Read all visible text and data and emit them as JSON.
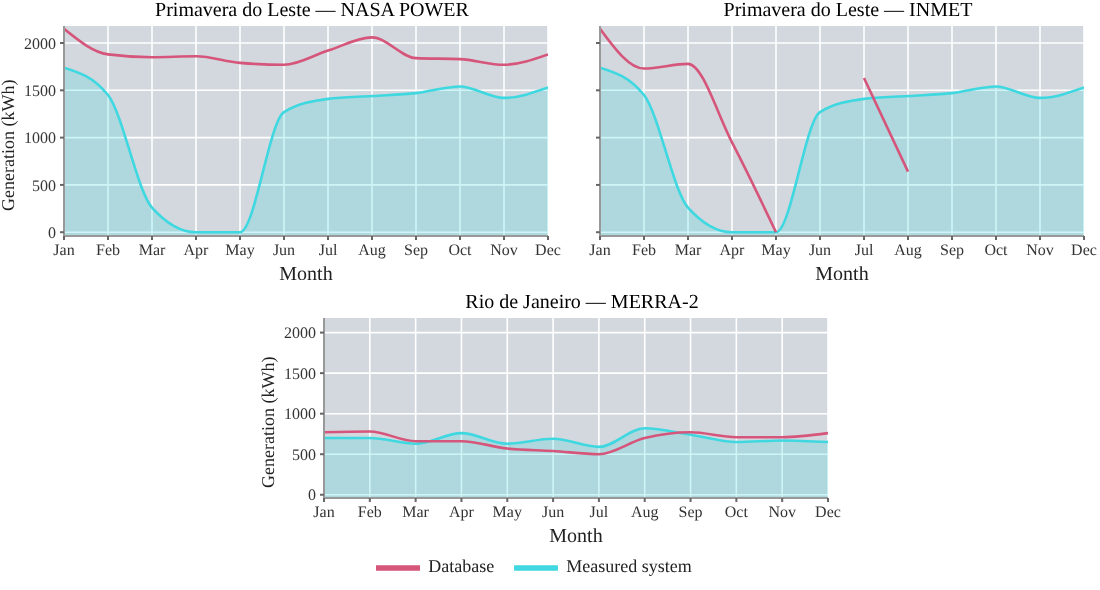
{
  "chart_data": [
    {
      "type": "line",
      "title": "Primavera do Leste — NASA POWER",
      "xlabel": "Month",
      "ylabel": "Generation (kWh)",
      "categories": [
        "Jan",
        "Feb",
        "Mar",
        "Apr",
        "May",
        "Jun",
        "Jul",
        "Aug",
        "Sep",
        "Oct",
        "Nov",
        "Dec"
      ],
      "ylim": [
        -40,
        2180
      ],
      "yticks": [
        0,
        500,
        1000,
        1500,
        2000
      ],
      "grid": true,
      "series": [
        {
          "color": "#d6557a",
          "values": [
            2150,
            1880,
            1850,
            1860,
            1790,
            1770,
            1920,
            2060,
            1840,
            1830,
            1770,
            1880
          ]
        },
        {
          "type": "area",
          "color": "#3fd8e0",
          "values": [
            1740,
            1450,
            260,
            0,
            0,
            1270,
            1410,
            1440,
            1470,
            1540,
            1420,
            1530
          ]
        }
      ]
    },
    {
      "type": "line",
      "title": "Primavera do Leste — INMET",
      "xlabel": "Month",
      "categories": [
        "Jan",
        "Feb",
        "Mar",
        "Apr",
        "May",
        "Jun",
        "Jul",
        "Aug",
        "Sep",
        "Oct",
        "Nov",
        "Dec"
      ],
      "ylim": [
        -40,
        2180
      ],
      "yticks": [
        0,
        500,
        1000,
        1500,
        2000
      ],
      "grid": true,
      "tick_labels": "x",
      "series": [
        {
          "color": "#d6557a",
          "values": [
            2150,
            1730,
            1780,
            950,
            0,
            null,
            1630,
            640,
            null,
            null,
            null,
            null
          ]
        },
        {
          "type": "area",
          "color": "#3fd8e0",
          "values": [
            1740,
            1450,
            260,
            0,
            0,
            1270,
            1410,
            1440,
            1470,
            1540,
            1420,
            1530
          ]
        }
      ]
    },
    {
      "type": "line",
      "title": "Rio de Janeiro — MERRA-2",
      "xlabel": "Month",
      "ylabel": "Generation (kWh)",
      "categories": [
        "Jan",
        "Feb",
        "Mar",
        "Apr",
        "May",
        "Jun",
        "Jul",
        "Aug",
        "Sep",
        "Oct",
        "Nov",
        "Dec"
      ],
      "ylim": [
        -40,
        2180
      ],
      "yticks": [
        0,
        500,
        1000,
        1500,
        2000
      ],
      "grid": true,
      "legend": "bottom",
      "series": [
        {
          "name": "Database",
          "color": "#d6557a",
          "values": [
            770,
            780,
            660,
            660,
            570,
            540,
            500,
            700,
            770,
            710,
            710,
            760
          ]
        },
        {
          "name": "Measured system",
          "type": "area",
          "color": "#3fd8e0",
          "values": [
            700,
            700,
            630,
            760,
            630,
            690,
            590,
            820,
            740,
            650,
            670,
            650
          ]
        }
      ]
    }
  ]
}
